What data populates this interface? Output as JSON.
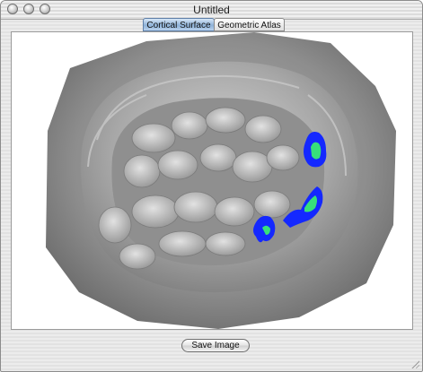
{
  "window": {
    "title": "Untitled"
  },
  "tabs": [
    {
      "label": "Cortical Surface",
      "active": true
    },
    {
      "label": "Geometric Atlas",
      "active": false
    }
  ],
  "footer": {
    "save_label": "Save Image"
  },
  "icons": {
    "window_controls": [
      "close-icon",
      "minimize-icon",
      "zoom-icon"
    ],
    "resize": "resize-grip-icon"
  },
  "colors": {
    "tab_active": "#8fb2d8",
    "surface_gray": "#9a9a9a",
    "activation_outer": "#1428ff",
    "activation_inner": "#37e07a"
  }
}
